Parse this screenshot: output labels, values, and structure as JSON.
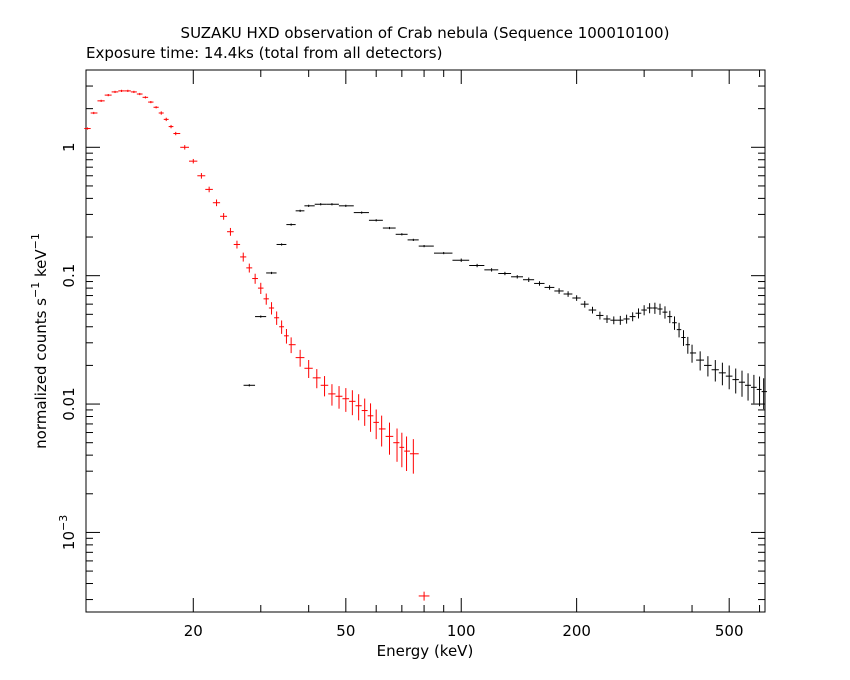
{
  "chart_data": {
    "type": "scatter",
    "title": "SUZAKU HXD observation of Crab nebula (Sequence 100010100)",
    "subtitle": "Exposure time: 14.4ks (total from all detectors)",
    "xlabel": "Energy (keV)",
    "ylabel_main": "normalized counts s",
    "ylabel_mid": " keV",
    "ylabel_sup": "−1",
    "xscale": "log",
    "yscale": "log",
    "xlim": [
      10.5,
      620
    ],
    "ylim": [
      0.00024,
      4
    ],
    "grid": false,
    "x_ticks": [
      {
        "v": 20,
        "label": "20"
      },
      {
        "v": 50,
        "label": "50"
      },
      {
        "v": 100,
        "label": "100"
      },
      {
        "v": 200,
        "label": "200"
      },
      {
        "v": 500,
        "label": "500"
      }
    ],
    "y_ticks": [
      {
        "v": 1,
        "label": "1"
      },
      {
        "v": 0.1,
        "label": "0.1"
      },
      {
        "v": 0.01,
        "label": "0.01"
      },
      {
        "v": 0.001,
        "base": "10",
        "exp": "−3"
      }
    ],
    "series": [
      {
        "color": "#ff0000",
        "x": [
          10.6,
          11.0,
          11.5,
          12.0,
          12.5,
          13.0,
          13.5,
          14.0,
          14.5,
          15.0,
          15.5,
          16.0,
          16.5,
          17.0,
          17.5,
          18.0,
          19.0,
          20.0,
          21.0,
          22.0,
          23.0,
          24.0,
          25.0,
          26.0,
          27.0,
          28.0,
          29.0,
          30.0,
          31.0,
          32.0,
          33.0,
          34.0,
          35.0,
          36.0,
          38.0,
          40.0,
          42.0,
          44.0,
          46.0,
          48.0,
          50.0,
          52.0,
          54.0,
          56.0,
          58.0,
          60.0,
          62.0,
          65.0,
          68.0,
          70.0,
          72.0,
          75.0,
          80.0
        ],
        "y": [
          1.4,
          1.85,
          2.3,
          2.55,
          2.7,
          2.75,
          2.75,
          2.7,
          2.6,
          2.45,
          2.25,
          2.05,
          1.85,
          1.65,
          1.45,
          1.28,
          1.0,
          0.78,
          0.6,
          0.47,
          0.37,
          0.29,
          0.22,
          0.175,
          0.14,
          0.115,
          0.095,
          0.08,
          0.066,
          0.056,
          0.047,
          0.04,
          0.034,
          0.029,
          0.023,
          0.019,
          0.016,
          0.014,
          0.012,
          0.0115,
          0.011,
          0.0105,
          0.0097,
          0.0089,
          0.0081,
          0.0072,
          0.0064,
          0.0056,
          0.005,
          0.0046,
          0.0043,
          0.0041,
          0.00032
        ],
        "yerr_frac": [
          0.02,
          0.02,
          0.02,
          0.02,
          0.02,
          0.02,
          0.02,
          0.02,
          0.02,
          0.02,
          0.02,
          0.02,
          0.03,
          0.03,
          0.03,
          0.03,
          0.04,
          0.04,
          0.05,
          0.05,
          0.06,
          0.06,
          0.07,
          0.07,
          0.08,
          0.08,
          0.09,
          0.1,
          0.1,
          0.11,
          0.12,
          0.12,
          0.13,
          0.14,
          0.15,
          0.16,
          0.17,
          0.18,
          0.19,
          0.2,
          0.21,
          0.22,
          0.23,
          0.24,
          0.25,
          0.26,
          0.27,
          0.28,
          0.29,
          0.3,
          0.3,
          0.3,
          0.08
        ]
      },
      {
        "color": "#000000",
        "x": [
          28.0,
          30.0,
          32.0,
          34.0,
          36.0,
          38.0,
          40.0,
          43.0,
          46.0,
          50.0,
          55.0,
          60.0,
          65.0,
          70.0,
          75.0,
          80.0,
          90.0,
          100.0,
          110.0,
          120.0,
          130.0,
          140.0,
          150.0,
          160.0,
          170.0,
          180.0,
          190.0,
          200.0,
          210.0,
          220.0,
          230.0,
          240.0,
          250.0,
          260.0,
          270.0,
          280.0,
          290.0,
          300.0,
          310.0,
          320.0,
          330.0,
          340.0,
          350.0,
          360.0,
          370.0,
          380.0,
          390.0,
          400.0,
          420.0,
          440.0,
          460.0,
          480.0,
          500.0,
          520.0,
          540.0,
          560.0,
          580.0,
          600.0,
          615.0
        ],
        "y": [
          0.014,
          0.048,
          0.105,
          0.175,
          0.25,
          0.32,
          0.35,
          0.36,
          0.36,
          0.35,
          0.31,
          0.27,
          0.235,
          0.21,
          0.19,
          0.17,
          0.15,
          0.132,
          0.12,
          0.111,
          0.104,
          0.098,
          0.093,
          0.087,
          0.081,
          0.076,
          0.072,
          0.067,
          0.06,
          0.054,
          0.049,
          0.046,
          0.045,
          0.045,
          0.046,
          0.048,
          0.051,
          0.054,
          0.056,
          0.056,
          0.055,
          0.052,
          0.048,
          0.043,
          0.038,
          0.033,
          0.029,
          0.025,
          0.022,
          0.02,
          0.0185,
          0.0175,
          0.0165,
          0.0155,
          0.0148,
          0.014,
          0.0135,
          0.013,
          0.0125
        ],
        "yerr_frac": [
          0.02,
          0.02,
          0.02,
          0.02,
          0.02,
          0.02,
          0.02,
          0.02,
          0.02,
          0.02,
          0.02,
          0.02,
          0.02,
          0.02,
          0.02,
          0.02,
          0.02,
          0.03,
          0.03,
          0.03,
          0.03,
          0.03,
          0.04,
          0.04,
          0.04,
          0.05,
          0.05,
          0.05,
          0.06,
          0.06,
          0.07,
          0.07,
          0.07,
          0.08,
          0.08,
          0.08,
          0.09,
          0.09,
          0.09,
          0.1,
          0.1,
          0.11,
          0.11,
          0.12,
          0.13,
          0.14,
          0.15,
          0.16,
          0.17,
          0.18,
          0.19,
          0.2,
          0.21,
          0.22,
          0.23,
          0.24,
          0.25,
          0.26,
          0.27
        ]
      }
    ]
  }
}
